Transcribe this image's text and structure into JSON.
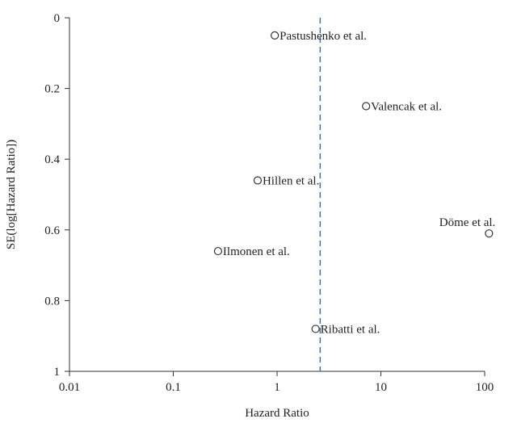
{
  "chart_data": {
    "type": "scatter",
    "title": "",
    "xlabel": "Hazard Ratio",
    "ylabel": "SE(log[Hazard Ratio])",
    "x_scale": "log",
    "xlim": [
      0.01,
      100
    ],
    "ylim": [
      0,
      1
    ],
    "y_inverted": true,
    "x_ticks": [
      0.01,
      0.1,
      1,
      10,
      100
    ],
    "x_tick_labels": [
      "0.01",
      "0.1",
      "1",
      "10",
      "100"
    ],
    "y_ticks": [
      0,
      0.2,
      0.4,
      0.6,
      0.8,
      1
    ],
    "y_tick_labels": [
      "0",
      "0.2",
      "0.4",
      "0.6",
      "0.8",
      "1"
    ],
    "grid": false,
    "reference_line": {
      "x": 2.6,
      "style": "dashed",
      "color": "#4a6fa5"
    },
    "points": [
      {
        "label": "Pastushenko et al.",
        "x": 0.95,
        "y": 0.05,
        "label_side": "right"
      },
      {
        "label": "Valencak et al.",
        "x": 7.2,
        "y": 0.25,
        "label_side": "right"
      },
      {
        "label": "Hillen et al.",
        "x": 0.65,
        "y": 0.46,
        "label_side": "right"
      },
      {
        "label": "Döme et al.",
        "x": 110,
        "y": 0.61,
        "label_side": "above-left"
      },
      {
        "label": "Ilmonen et al.",
        "x": 0.27,
        "y": 0.66,
        "label_side": "right"
      },
      {
        "label": "Ribatti et al.",
        "x": 2.35,
        "y": 0.88,
        "label_side": "right"
      }
    ],
    "marker_color": "#333333"
  }
}
